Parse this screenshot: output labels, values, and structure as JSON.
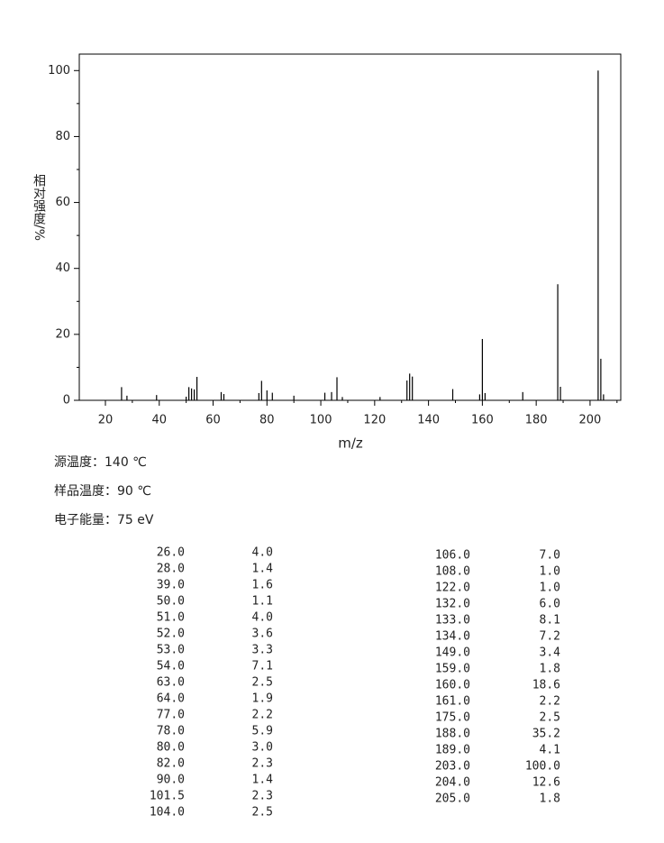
{
  "chart_data": {
    "type": "stick",
    "xlabel": "m/z",
    "ylabel": "相对强度/%",
    "x": [
      26,
      28,
      39,
      50,
      51,
      52,
      53,
      54,
      63,
      64,
      77,
      78,
      80,
      82,
      90,
      101.5,
      104,
      106,
      108,
      122,
      132,
      133,
      134,
      149,
      159,
      160,
      161,
      175,
      188,
      189,
      203,
      204,
      205
    ],
    "values": [
      4.0,
      1.4,
      1.6,
      1.1,
      4.0,
      3.6,
      3.3,
      7.1,
      2.5,
      1.9,
      2.2,
      5.9,
      3.0,
      2.3,
      1.4,
      2.3,
      2.5,
      7.0,
      1.0,
      1.0,
      6.0,
      8.1,
      7.2,
      3.4,
      1.8,
      18.6,
      2.2,
      2.5,
      35.2,
      4.1,
      100.0,
      12.6,
      1.8
    ],
    "color": "#000000",
    "xlim": [
      10.3,
      211.4
    ],
    "xticks": [
      20,
      40,
      60,
      80,
      100,
      120,
      140,
      160,
      180,
      200
    ],
    "ylim": [
      0,
      105
    ],
    "yticks": [
      0,
      20,
      40,
      60,
      80,
      100
    ]
  },
  "info": [
    "源温度：140 ℃",
    "样品温度：90 ℃",
    "电子能量：75 eV"
  ],
  "table": {
    "left": [
      [
        "26.0",
        "4.0"
      ],
      [
        "28.0",
        "1.4"
      ],
      [
        "39.0",
        "1.6"
      ],
      [
        "50.0",
        "1.1"
      ],
      [
        "51.0",
        "4.0"
      ],
      [
        "52.0",
        "3.6"
      ],
      [
        "53.0",
        "3.3"
      ],
      [
        "54.0",
        "7.1"
      ],
      [
        "63.0",
        "2.5"
      ],
      [
        "64.0",
        "1.9"
      ],
      [
        "77.0",
        "2.2"
      ],
      [
        "78.0",
        "5.9"
      ],
      [
        "80.0",
        "3.0"
      ],
      [
        "82.0",
        "2.3"
      ],
      [
        "90.0",
        "1.4"
      ],
      [
        "101.5",
        "2.3"
      ],
      [
        "104.0",
        "2.5"
      ]
    ],
    "right": [
      [
        "106.0",
        "7.0"
      ],
      [
        "108.0",
        "1.0"
      ],
      [
        "122.0",
        "1.0"
      ],
      [
        "132.0",
        "6.0"
      ],
      [
        "133.0",
        "8.1"
      ],
      [
        "134.0",
        "7.2"
      ],
      [
        "149.0",
        "3.4"
      ],
      [
        "159.0",
        "1.8"
      ],
      [
        "160.0",
        "18.6"
      ],
      [
        "161.0",
        "2.2"
      ],
      [
        "175.0",
        "2.5"
      ],
      [
        "188.0",
        "35.2"
      ],
      [
        "189.0",
        "4.1"
      ],
      [
        "203.0",
        "100.0"
      ],
      [
        "204.0",
        "12.6"
      ],
      [
        "205.0",
        "1.8"
      ]
    ]
  }
}
